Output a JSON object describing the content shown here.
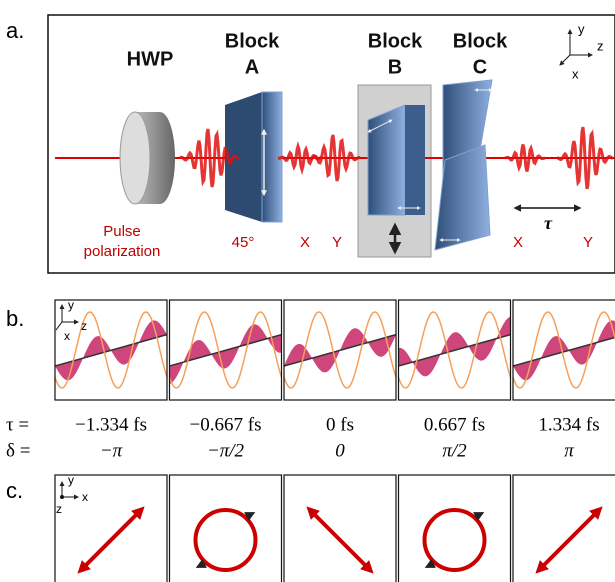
{
  "panel_a": {
    "label": "a.",
    "hwp": "HWP",
    "blocks": [
      {
        "line1": "Block",
        "line2": "A"
      },
      {
        "line1": "Block",
        "line2": "B"
      },
      {
        "line1": "Block",
        "line2": "C"
      }
    ],
    "axes": {
      "y": "y",
      "z": "z",
      "x": "x"
    },
    "pulse_polarization": [
      "Pulse",
      "polarization"
    ],
    "angle": "45°",
    "polarization_labels": [
      "X",
      "Y",
      "X",
      "Y"
    ],
    "delay": "τ"
  },
  "panel_b": {
    "label": "b.",
    "axes": {
      "y": "y",
      "z": "z",
      "x": "x"
    },
    "tau_label": "τ =",
    "tau_values": [
      "−1.334 fs",
      "−0.667 fs",
      "0 fs",
      "0.667 fs",
      "1.334 fs"
    ],
    "delta_label": "δ =",
    "delta_values": [
      "−π",
      "−π/2",
      "0",
      "π/2",
      "π"
    ]
  },
  "panel_c": {
    "label": "c.",
    "axes": {
      "y": "y",
      "x": "x",
      "z": "z"
    }
  }
}
